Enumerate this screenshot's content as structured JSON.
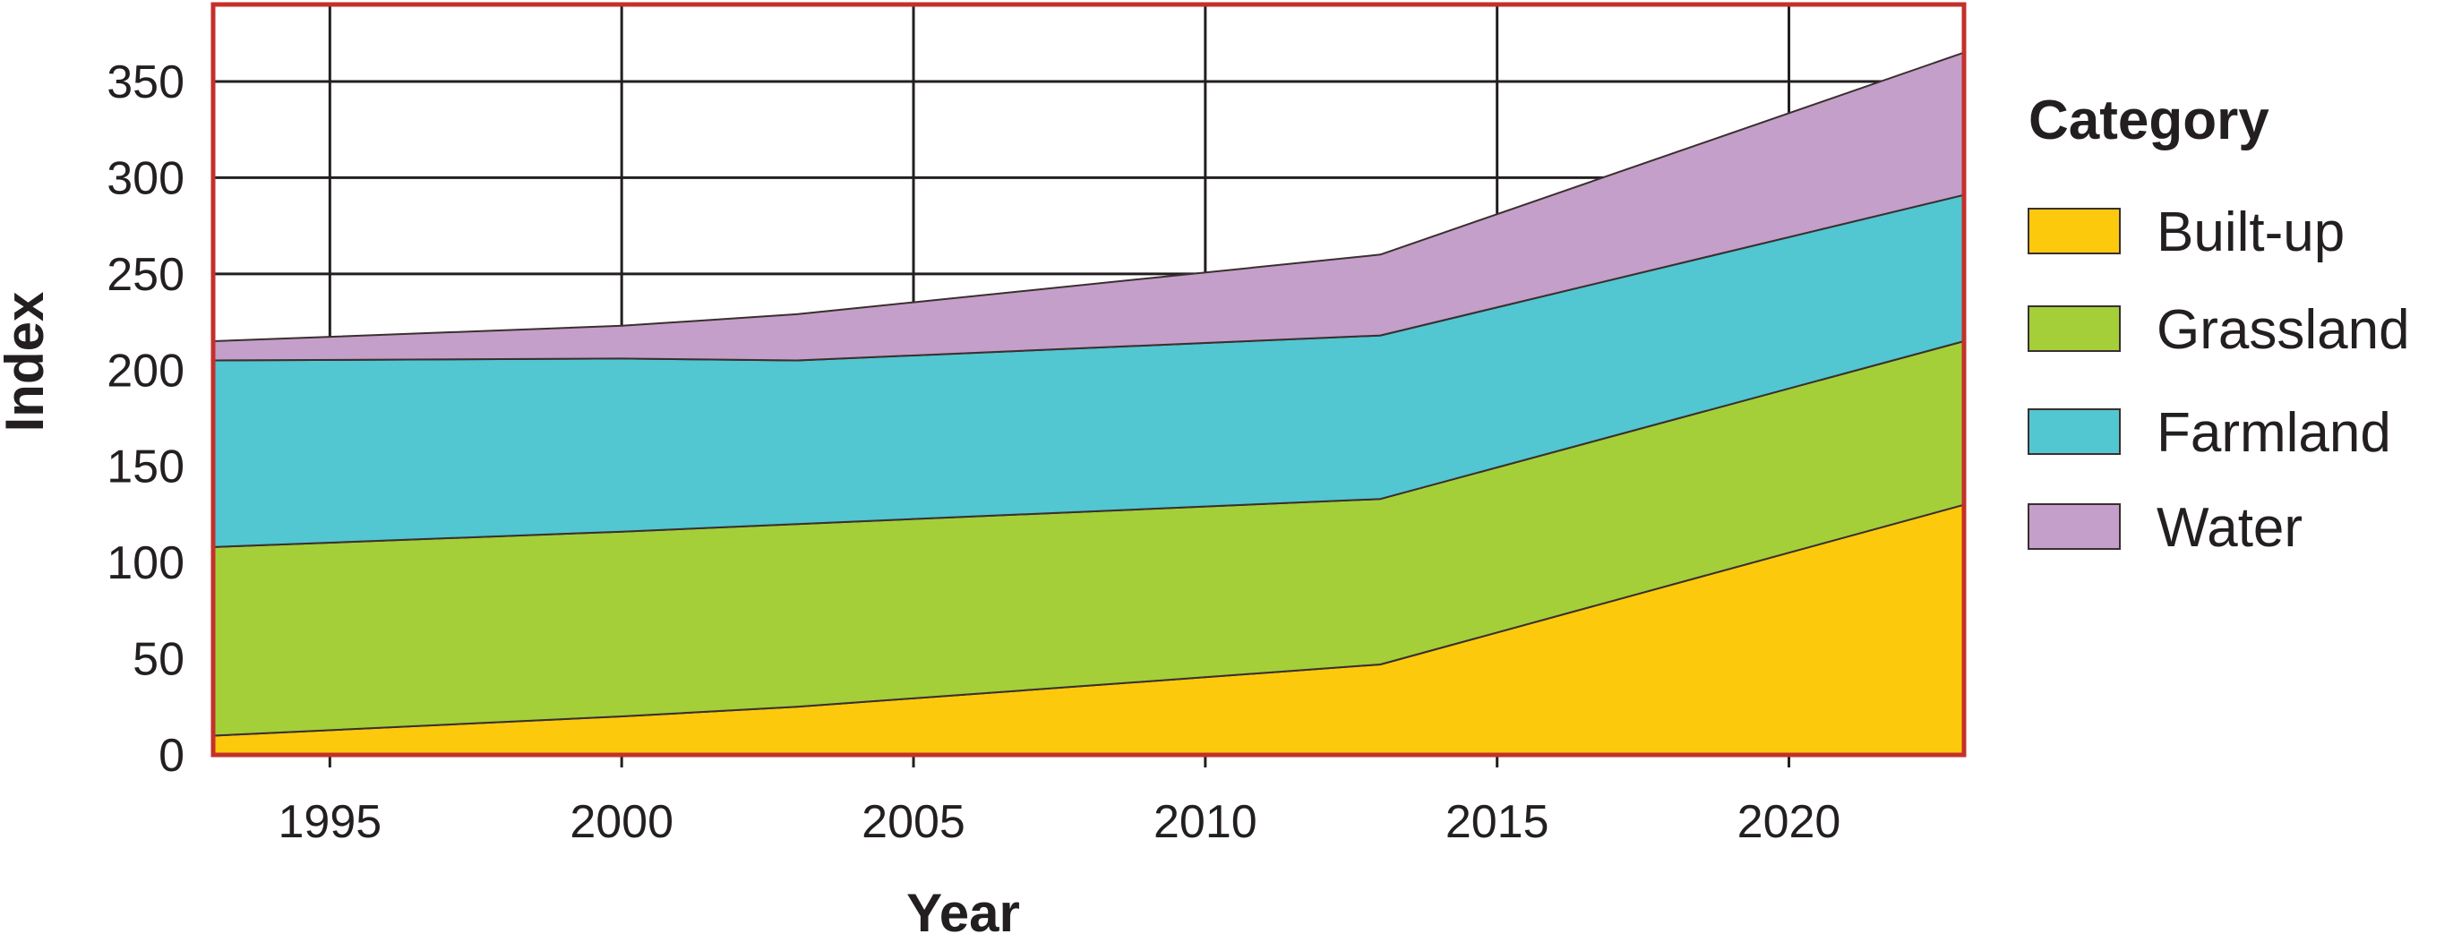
{
  "chart_data": {
    "type": "area",
    "stacked": true,
    "title": "",
    "xlabel": "Year",
    "ylabel": "Index",
    "x_ticks": [
      "1995",
      "2000",
      "2005",
      "2010",
      "2015",
      "2020"
    ],
    "y_ticks": [
      "0",
      "50",
      "100",
      "150",
      "200",
      "250",
      "300",
      "350"
    ],
    "xlim": [
      1993,
      2023
    ],
    "ylim": [
      0,
      390
    ],
    "grid": true,
    "legend": {
      "title": "Category",
      "position": "right",
      "entries": [
        "Built-up",
        "Grassland",
        "Farmland",
        "Water"
      ]
    },
    "x": [
      1993,
      2000,
      2003,
      2013,
      2023
    ],
    "series": [
      {
        "name": "Built-up",
        "color": "#fdc90d",
        "values": [
          10,
          20,
          25,
          47,
          130
        ]
      },
      {
        "name": "Grassland",
        "color": "#a4cf39",
        "values": [
          98,
          96,
          95,
          86,
          85
        ]
      },
      {
        "name": "Farmland",
        "color": "#52c6d1",
        "values": [
          97,
          90,
          85,
          85,
          76
        ]
      },
      {
        "name": "Water",
        "color": "#c49fc9",
        "values": [
          10,
          17,
          24,
          42,
          74
        ]
      }
    ],
    "colors": {
      "frame": "#c4302b",
      "grid": "#231f20",
      "text": "#231f20",
      "series_outline": "#3a2f2f"
    }
  }
}
